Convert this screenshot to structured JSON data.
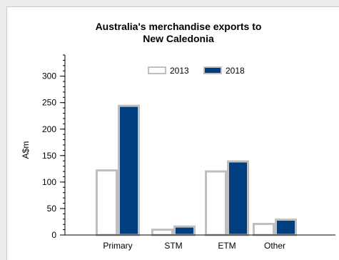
{
  "chart_data": {
    "type": "bar",
    "title_line1": "Australia's merchandise exports to",
    "title_line2": "New Caledonia",
    "xlabel": "",
    "ylabel": "A$m",
    "categories": [
      "Primary",
      "STM",
      "ETM",
      "Other"
    ],
    "series": [
      {
        "name": "2013",
        "values": [
          122,
          10,
          120,
          21
        ],
        "fill": "#ffffff",
        "stroke": "#bfbfbf"
      },
      {
        "name": "2018",
        "values": [
          244,
          16,
          139,
          29
        ],
        "fill": "#003f7f",
        "stroke": "#bfbfbf"
      }
    ],
    "ylim": [
      0,
      340
    ],
    "yticks": [
      0,
      50,
      100,
      150,
      200,
      250,
      300
    ],
    "ytick_labels": [
      "0",
      "50",
      "100",
      "150",
      "200",
      "250",
      "300"
    ],
    "grid": false,
    "legend_position": "top-center"
  }
}
